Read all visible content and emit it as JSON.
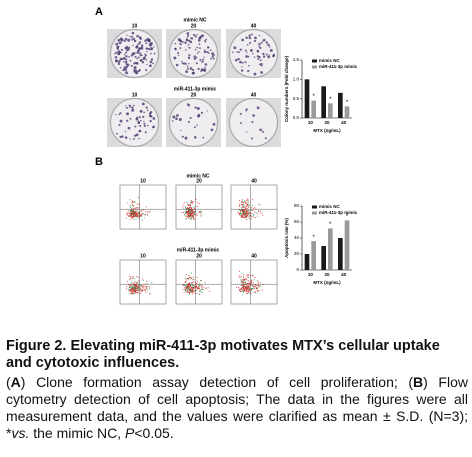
{
  "panels": [
    {
      "label": "A",
      "rows": [
        {
          "label": "mimic NC",
          "columns": [
            "10",
            "20",
            "40"
          ]
        },
        {
          "label": "miR-411-3p mimic",
          "columns": [
            "10",
            "20",
            "40"
          ]
        }
      ]
    },
    {
      "label": "B",
      "rows": [
        {
          "label": "mimic NC",
          "columns": [
            "10",
            "20",
            "40"
          ]
        },
        {
          "label": "miR-411-3p mimic",
          "columns": [
            "10",
            "20",
            "40"
          ]
        }
      ]
    }
  ],
  "chart_data": [
    {
      "type": "bar",
      "y_label": "Colony numbers (Fold change)",
      "x_label": "MTX (ng/mL)",
      "categories": [
        "10",
        "20",
        "40"
      ],
      "series": [
        {
          "name": "mimic NC",
          "color": "#1a1a1a",
          "values": [
            1.0,
            0.82,
            0.65
          ]
        },
        {
          "name": "miR-411-3p mimic",
          "color": "#9a9a9a",
          "values": [
            0.45,
            0.38,
            0.3
          ]
        }
      ],
      "ylim": [
        0,
        1.5
      ],
      "yticks": [
        {
          "value": 0,
          "label": "0.0"
        },
        0.5,
        {
          "value": 1,
          "label": "1.0"
        },
        1.5
      ],
      "significance_marker": "*"
    },
    {
      "type": "bar",
      "y_label": "Apoptosis rate (%)",
      "x_label": "MTX (ng/mL)",
      "categories": [
        "10",
        "20",
        "40"
      ],
      "series": [
        {
          "name": "mimic NC",
          "color": "#1a1a1a",
          "values": [
            20,
            30,
            40
          ]
        },
        {
          "name": "miR-411-3p mimic",
          "color": "#9a9a9a",
          "values": [
            36,
            52,
            62
          ]
        }
      ],
      "ylim": [
        0,
        80
      ],
      "yticks": [
        0,
        20,
        40,
        60,
        80
      ],
      "significance_marker": "*"
    }
  ],
  "caption": {
    "title": "Figure 2. Elevating miR-411-3p motivates MTX’s cellular uptake and cytotoxic influences.",
    "segments": [
      {
        "text": "(",
        "style": "normal"
      },
      {
        "text": "A",
        "style": "bold"
      },
      {
        "text": ") Clone formation assay detection of cell proliferation; (",
        "style": "normal"
      },
      {
        "text": "B",
        "style": "bold"
      },
      {
        "text": ") Flow cytometry detection of cell apoptosis; The data in the figures were all measurement data, and the values were clarified as mean ± S.D. (N=3); *",
        "style": "normal"
      },
      {
        "text": "vs.",
        "style": "italic"
      },
      {
        "text": " the mimic NC, ",
        "style": "normal"
      },
      {
        "text": "P",
        "style": "italic"
      },
      {
        "text": "<0.05.",
        "style": "normal"
      }
    ]
  }
}
